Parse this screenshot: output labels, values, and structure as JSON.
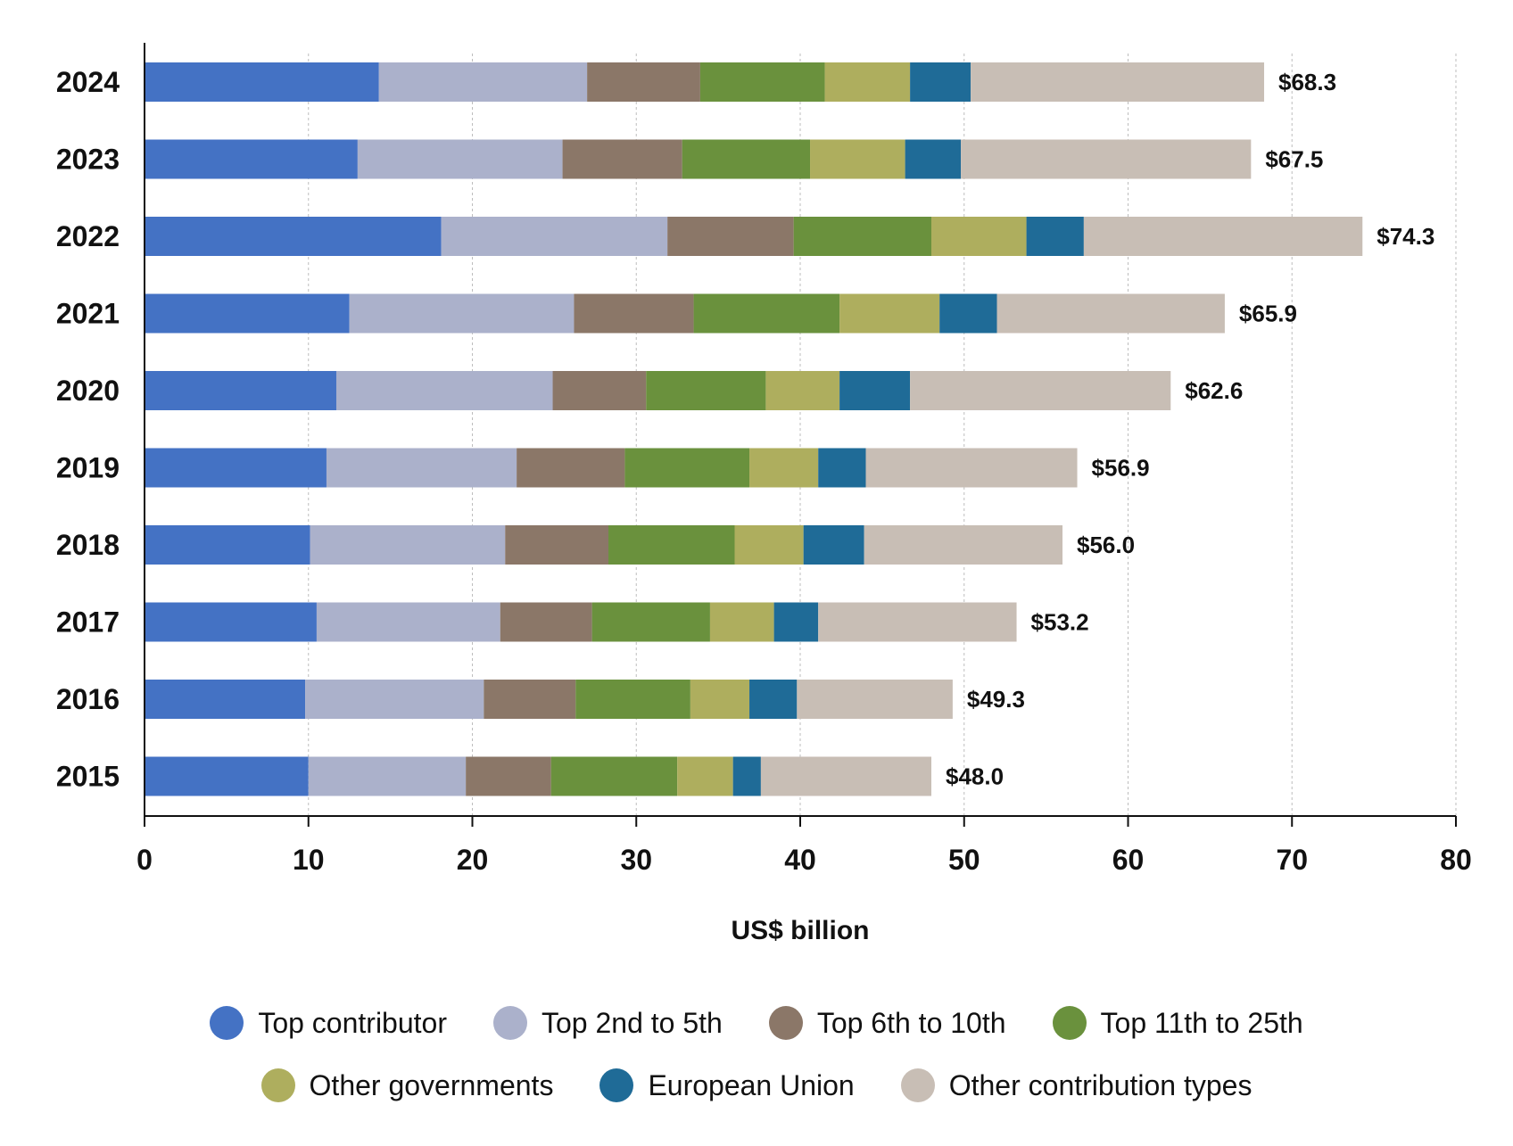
{
  "chart_data": {
    "type": "bar",
    "orientation": "horizontal",
    "stacked": true,
    "xlabel": "US$ billion",
    "xlim": [
      0,
      80
    ],
    "xticks": [
      0,
      10,
      20,
      30,
      40,
      50,
      60,
      70,
      80
    ],
    "grid": "vertical dashed",
    "legend_position": "bottom",
    "categories": [
      "2024",
      "2023",
      "2022",
      "2021",
      "2020",
      "2019",
      "2018",
      "2017",
      "2016",
      "2015"
    ],
    "totals": [
      68.3,
      67.5,
      74.3,
      65.9,
      62.6,
      56.9,
      56.0,
      53.2,
      49.3,
      48.0
    ],
    "total_labels": [
      "$68.3",
      "$67.5",
      "$74.3",
      "$65.9",
      "$62.6",
      "$56.9",
      "$56.0",
      "$53.2",
      "$49.3",
      "$48.0"
    ],
    "series": [
      {
        "name": "Top contributor",
        "color": "#4472c4",
        "values": [
          14.3,
          13.0,
          18.1,
          12.5,
          11.7,
          11.1,
          10.1,
          10.5,
          9.8,
          10.0
        ]
      },
      {
        "name": "Top 2nd to 5th",
        "color": "#abb1cb",
        "values": [
          12.7,
          12.5,
          13.8,
          13.7,
          13.2,
          11.6,
          11.9,
          11.2,
          10.9,
          9.6
        ]
      },
      {
        "name": "Top 6th to 10th",
        "color": "#8b7768",
        "values": [
          6.9,
          7.3,
          7.7,
          7.3,
          5.7,
          6.6,
          6.3,
          5.6,
          5.6,
          5.2
        ]
      },
      {
        "name": "Top 11th to 25th",
        "color": "#6a913d",
        "values": [
          7.6,
          7.8,
          8.4,
          8.9,
          7.3,
          7.6,
          7.7,
          7.2,
          7.0,
          7.7
        ]
      },
      {
        "name": "Other governments",
        "color": "#aeae5e",
        "values": [
          5.2,
          5.8,
          5.8,
          6.1,
          4.5,
          4.2,
          4.2,
          3.9,
          3.6,
          3.4
        ]
      },
      {
        "name": "European Union",
        "color": "#1f6b97",
        "values": [
          3.7,
          3.4,
          3.5,
          3.5,
          4.3,
          2.9,
          3.7,
          2.7,
          2.9,
          1.7
        ]
      },
      {
        "name": "Other contribution types",
        "color": "#c8beb5",
        "values": [
          17.9,
          17.7,
          17.0,
          13.9,
          15.9,
          12.9,
          12.1,
          12.1,
          9.5,
          10.4
        ]
      }
    ]
  }
}
